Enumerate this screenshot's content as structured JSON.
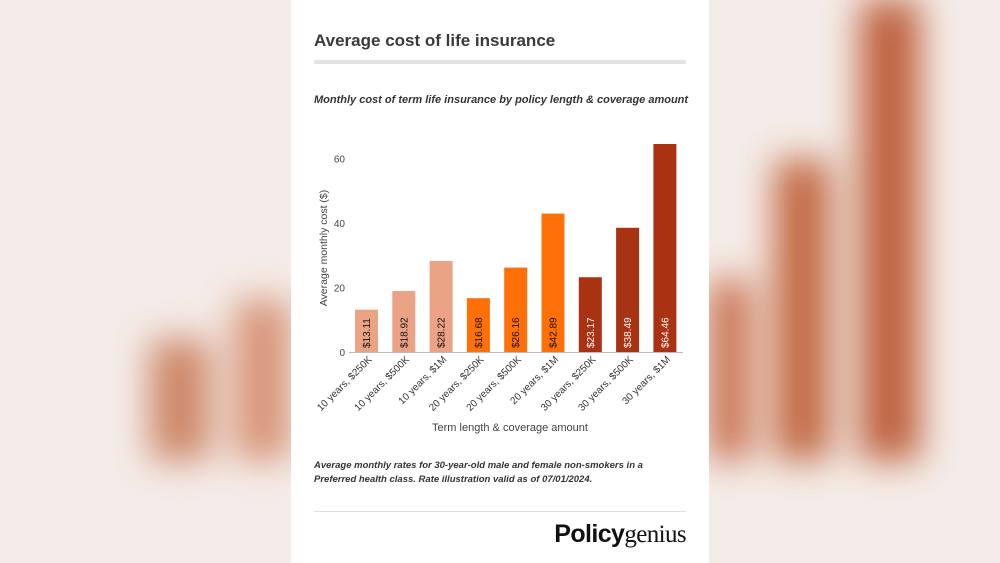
{
  "title": "Average cost of life insurance",
  "subtitle": "Monthly cost of term life insurance by policy length & coverage amount",
  "note": "Average monthly rates for 30-year-old male and female non-smokers in a Preferred health class. Rate illustration valid as of 07/01/2024.",
  "logo": {
    "bold": "Policy",
    "regular": "genius"
  },
  "colors": {
    "ten_years": "#eba386",
    "twenty_years": "#ff7008",
    "thirty_years": "#a83212",
    "background": "#f4ece8"
  },
  "chart_data": {
    "type": "bar",
    "xlabel": "Term length & coverage amount",
    "ylabel": "Average monthly cost ($)",
    "ylim": [
      0,
      64.46
    ],
    "yticks": [
      0,
      20,
      40,
      60
    ],
    "grid": false,
    "categories": [
      "10 years, $250K",
      "10 years, $500K",
      "10 years, $1M",
      "20 years, $250K",
      "20 years, $500K",
      "20 years, $1M",
      "30 years, $250K",
      "30 years, $500K",
      "30 years, $1M"
    ],
    "values": [
      13.11,
      18.92,
      28.22,
      16.68,
      26.16,
      42.89,
      23.17,
      38.49,
      64.46
    ],
    "data_labels": [
      "$13.11",
      "$18.92",
      "$28.22",
      "$16.68",
      "$26.16",
      "$42.89",
      "$23.17",
      "$38.49",
      "$64.46"
    ],
    "bar_colors": [
      "#eba386",
      "#eba386",
      "#eba386",
      "#ff7008",
      "#ff7008",
      "#ff7008",
      "#a83212",
      "#a83212",
      "#a83212"
    ],
    "label_colors": [
      "#111111",
      "#111111",
      "#111111",
      "#111111",
      "#111111",
      "#111111",
      "#ffffff",
      "#ffffff",
      "#ffffff"
    ]
  }
}
